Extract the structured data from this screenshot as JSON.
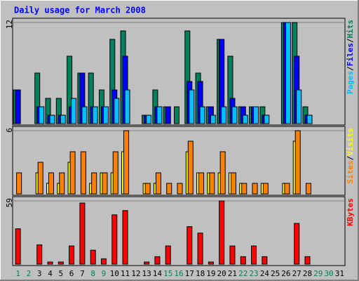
{
  "title": "Daily usage for March 2008",
  "chart_data": [
    {
      "type": "bar",
      "ylim": [
        0,
        12
      ],
      "yticks": [
        12
      ],
      "separator": "/",
      "series": [
        {
          "name": "Hits",
          "color": "#00805c",
          "values": [
            4,
            0,
            6,
            3,
            3,
            8,
            6,
            6,
            4,
            10,
            11,
            0,
            1,
            4,
            2,
            2,
            11,
            6,
            2,
            10,
            8,
            2,
            2,
            2,
            0,
            12,
            12,
            2,
            0,
            0,
            0
          ]
        },
        {
          "name": "Files",
          "color": "#0000ff",
          "values": [
            4,
            0,
            2,
            1,
            1,
            2,
            6,
            2,
            2,
            4,
            8,
            0,
            1,
            2,
            2,
            0,
            5,
            5,
            2,
            10,
            3,
            2,
            2,
            1,
            0,
            12,
            8,
            1,
            0,
            0,
            0
          ]
        },
        {
          "name": "Pages",
          "color": "#00c0ff",
          "values": [
            0,
            0,
            2,
            1,
            1,
            3,
            2,
            2,
            2,
            3,
            4,
            0,
            1,
            2,
            0,
            0,
            4,
            2,
            1,
            2,
            2,
            1,
            2,
            1,
            0,
            12,
            4,
            1,
            0,
            0,
            0
          ]
        }
      ]
    },
    {
      "type": "bar",
      "ylim": [
        0,
        6
      ],
      "yticks": [
        6
      ],
      "separator": "/",
      "series": [
        {
          "name": "Visits",
          "color": "#ffff00",
          "values": [
            0,
            0,
            2,
            1,
            1,
            3,
            0,
            1,
            2,
            2,
            4,
            0,
            1,
            1,
            0,
            0,
            4,
            2,
            2,
            2,
            2,
            1,
            0,
            1,
            0,
            1,
            5,
            0,
            0,
            0,
            0
          ]
        },
        {
          "name": "Sites",
          "color": "#ff8000",
          "values": [
            2,
            0,
            3,
            2,
            2,
            4,
            4,
            2,
            2,
            4,
            6,
            0,
            1,
            2,
            1,
            1,
            5,
            2,
            2,
            4,
            2,
            1,
            1,
            1,
            0,
            1,
            6,
            1,
            0,
            0,
            0
          ]
        }
      ]
    },
    {
      "type": "bar",
      "ylim": [
        0,
        59
      ],
      "yticks": [
        59
      ],
      "series": [
        {
          "name": "KBytes",
          "color": "#ff0000",
          "values": [
            33,
            0,
            18,
            2,
            2,
            17,
            57,
            13,
            5,
            46,
            50,
            0,
            2,
            7,
            17,
            0,
            35,
            29,
            2,
            59,
            17,
            7,
            17,
            7,
            0,
            0,
            38,
            7,
            0,
            0,
            0
          ]
        }
      ],
      "categories": [
        "1",
        "2",
        "3",
        "4",
        "5",
        "6",
        "7",
        "8",
        "9",
        "10",
        "11",
        "12",
        "13",
        "14",
        "15",
        "16",
        "17",
        "18",
        "19",
        "20",
        "21",
        "22",
        "23",
        "24",
        "25",
        "26",
        "27",
        "28",
        "29",
        "30",
        "31"
      ],
      "category_colors": [
        "#00805c",
        "#00805c",
        "#000000",
        "#000000",
        "#000000",
        "#000000",
        "#000000",
        "#00805c",
        "#00805c",
        "#000000",
        "#000000",
        "#000000",
        "#000000",
        "#000000",
        "#00805c",
        "#00805c",
        "#000000",
        "#000000",
        "#000000",
        "#000000",
        "#000000",
        "#00805c",
        "#00805c",
        "#000000",
        "#000000",
        "#000000",
        "#000000",
        "#000000",
        "#00805c",
        "#00805c",
        "#000000"
      ]
    }
  ]
}
